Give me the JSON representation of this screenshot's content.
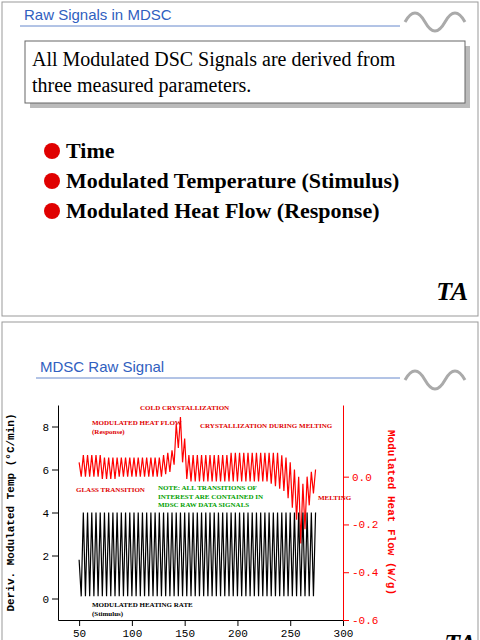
{
  "slides": [
    {
      "title": "Raw Signals in MDSC",
      "box": [
        "All Modulated DSC Signals are derived from",
        "three measured parameters."
      ],
      "bullets": [
        "Time",
        "Modulated Temperature (Stimulus)",
        "Modulated Heat Flow (Response)"
      ],
      "logo": "TA"
    },
    {
      "title": "MDSC Raw Signal",
      "logo": "TA"
    }
  ],
  "chart_data": {
    "type": "line",
    "y_label": "Deriv. Modulated Temp (°C/min)",
    "y2_label": "Modulated Heat Flow (W/g)",
    "xlim": [
      30,
      300
    ],
    "xticks": [
      50,
      100,
      150,
      200,
      250,
      300
    ],
    "ylim": [
      -1,
      9
    ],
    "yticks": [
      0,
      2,
      4,
      6,
      8
    ],
    "y2lim": [
      -0.6,
      0.3
    ],
    "y2ticks": [
      {
        "value": 0,
        "label": "0.0"
      },
      -0.2,
      -0.4,
      -0.6
    ],
    "x": [
      50,
      52,
      54,
      56,
      58,
      60,
      62,
      64,
      66,
      68,
      70,
      72,
      74,
      76,
      78,
      80,
      82,
      84,
      86,
      88,
      90,
      92,
      94,
      96,
      98,
      100,
      102,
      104,
      106,
      108,
      110,
      112,
      114,
      116,
      118,
      120,
      122,
      124,
      126,
      128,
      130,
      132,
      134,
      136,
      138,
      140,
      142,
      144,
      146,
      148,
      150,
      152,
      154,
      156,
      158,
      160,
      162,
      164,
      166,
      168,
      170,
      172,
      174,
      176,
      178,
      180,
      182,
      184,
      186,
      188,
      190,
      192,
      194,
      196,
      198,
      200,
      202,
      204,
      206,
      208,
      210,
      212,
      214,
      216,
      218,
      220,
      222,
      224,
      226,
      228,
      230,
      232,
      234,
      236,
      238,
      240,
      242,
      244,
      246,
      248,
      250,
      252,
      254,
      256,
      258,
      260,
      262,
      264,
      266,
      268,
      270,
      272,
      274
    ],
    "series": [
      {
        "name": "MODULATED HEAT FLOW",
        "color": "#ff0000",
        "axis": "y2",
        "values": [
          0.06,
          0.0,
          0.09,
          0.0,
          0.09,
          0.0,
          0.09,
          0.0,
          0.09,
          0.0,
          0.09,
          -0.01,
          0.08,
          -0.01,
          0.08,
          -0.01,
          0.08,
          -0.01,
          0.08,
          0.0,
          0.08,
          0.0,
          0.08,
          0.0,
          0.08,
          0.0,
          0.08,
          0.0,
          0.08,
          0.0,
          0.08,
          0.0,
          0.08,
          0.0,
          0.08,
          0.0,
          0.08,
          0.0,
          0.08,
          0.0,
          0.09,
          0.01,
          0.1,
          0.02,
          0.11,
          0.05,
          0.22,
          0.12,
          0.25,
          0.06,
          0.16,
          -0.01,
          0.09,
          -0.02,
          0.09,
          -0.02,
          0.09,
          -0.02,
          0.09,
          -0.02,
          0.09,
          -0.02,
          0.09,
          -0.02,
          0.09,
          -0.02,
          0.09,
          -0.02,
          0.09,
          -0.02,
          0.09,
          -0.02,
          0.1,
          -0.02,
          0.1,
          -0.02,
          0.1,
          -0.02,
          0.1,
          -0.02,
          0.1,
          -0.02,
          0.1,
          -0.02,
          0.1,
          -0.02,
          0.1,
          -0.02,
          0.1,
          -0.02,
          0.1,
          -0.03,
          0.1,
          -0.04,
          0.1,
          -0.05,
          0.09,
          -0.06,
          0.08,
          -0.09,
          0.06,
          -0.13,
          0.03,
          -0.18,
          0.0,
          -0.28,
          -0.03,
          -0.22,
          0.0,
          -0.12,
          0.02,
          -0.07,
          0.03
        ]
      },
      {
        "name": "MODULATED HEATING RATE",
        "color": "#000000",
        "values": [
          1.8,
          0.1,
          4.0,
          0.1,
          4.0,
          0.1,
          4.0,
          0.1,
          4.0,
          0.1,
          4.0,
          0.1,
          4.0,
          0.1,
          4.0,
          0.1,
          4.0,
          0.1,
          4.0,
          0.1,
          4.0,
          0.1,
          4.0,
          0.1,
          4.0,
          0.1,
          4.0,
          0.1,
          4.0,
          0.1,
          4.0,
          0.1,
          4.0,
          0.1,
          4.0,
          0.1,
          4.0,
          0.1,
          4.0,
          0.1,
          4.0,
          0.1,
          4.0,
          0.1,
          4.0,
          0.1,
          4.0,
          0.1,
          4.0,
          0.1,
          4.0,
          0.1,
          4.0,
          0.1,
          4.0,
          0.1,
          4.0,
          0.1,
          4.0,
          0.1,
          4.0,
          0.1,
          4.0,
          0.1,
          4.0,
          0.1,
          4.0,
          0.1,
          4.0,
          0.1,
          4.0,
          0.1,
          4.0,
          0.1,
          4.0,
          0.1,
          4.0,
          0.1,
          4.0,
          0.1,
          4.0,
          0.1,
          4.0,
          0.1,
          4.0,
          0.1,
          4.0,
          0.1,
          4.0,
          0.1,
          4.0,
          0.1,
          4.0,
          0.1,
          4.0,
          0.1,
          4.0,
          0.1,
          4.0,
          0.1,
          4.0,
          0.1,
          4.0,
          0.1,
          4.0,
          0.1,
          4.0,
          0.1,
          4.0,
          0.1,
          4.0,
          0.1,
          4.0
        ]
      }
    ],
    "annotations": [
      {
        "text": [
          "MODULATED HEAT FLOW",
          "(Response)"
        ],
        "color": "#e00000"
      },
      {
        "text": [
          "COLD CRYSTALLIZATION"
        ],
        "color": "#e00000"
      },
      {
        "text": [
          "CRYSTALLIZATION DURING MELTING"
        ],
        "color": "#e00000"
      },
      {
        "text": [
          "GLASS TRANSITION"
        ],
        "color": "#e00000"
      },
      {
        "text": [
          "NOTE: ALL TRANSITIONS OF",
          "INTEREST ARE CONTAINED IN",
          "MDSC RAW DATA SIGNALS"
        ],
        "color": "#00a000"
      },
      {
        "text": [
          "MELTING"
        ],
        "color": "#e00000"
      },
      {
        "text": [
          "MODULATED HEATING RATE",
          "(Stimulus)"
        ],
        "color": "#000000"
      }
    ]
  }
}
